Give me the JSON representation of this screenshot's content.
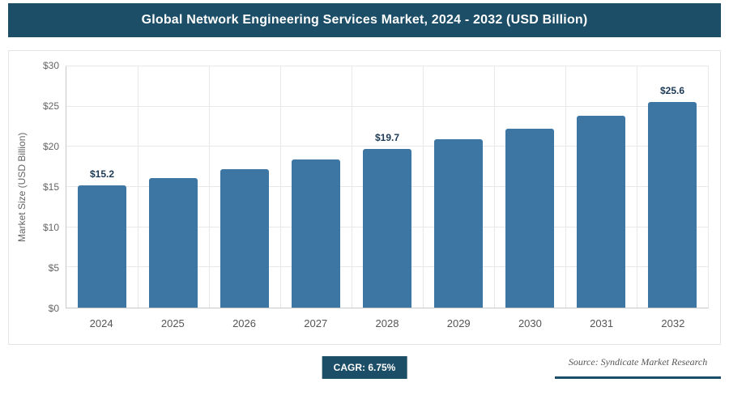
{
  "header": {
    "title": "Global Network Engineering Services Market, 2024 - 2032 (USD Billion)"
  },
  "chart_data": {
    "type": "bar",
    "title": "Global Network Engineering Services Market, 2024 - 2032 (USD Billion)",
    "categories": [
      "2024",
      "2025",
      "2026",
      "2027",
      "2028",
      "2029",
      "2030",
      "2031",
      "2032"
    ],
    "values": [
      15.2,
      16.1,
      17.2,
      18.4,
      19.7,
      20.9,
      22.3,
      23.9,
      25.6
    ],
    "annotations": [
      "$15.2",
      null,
      null,
      null,
      "$19.7",
      null,
      null,
      null,
      "$25.6"
    ],
    "xlabel": "",
    "ylabel": "Market Size (USD Billion)",
    "ylim": [
      0,
      30
    ],
    "yticks": [
      "$0",
      "$5",
      "$10",
      "$15",
      "$20",
      "$25",
      "$30"
    ],
    "grid": true,
    "legend": "none"
  },
  "footer": {
    "cagr_label": "CAGR: 6.75%",
    "source": "Source: Syndicate Market Research"
  },
  "colors": {
    "header_bg": "#1d4e68",
    "bar": "#3d76a3",
    "badge_bg": "#1d4e68",
    "accent_line": "#1d4e68",
    "annotation_text": "#1c3a55"
  }
}
